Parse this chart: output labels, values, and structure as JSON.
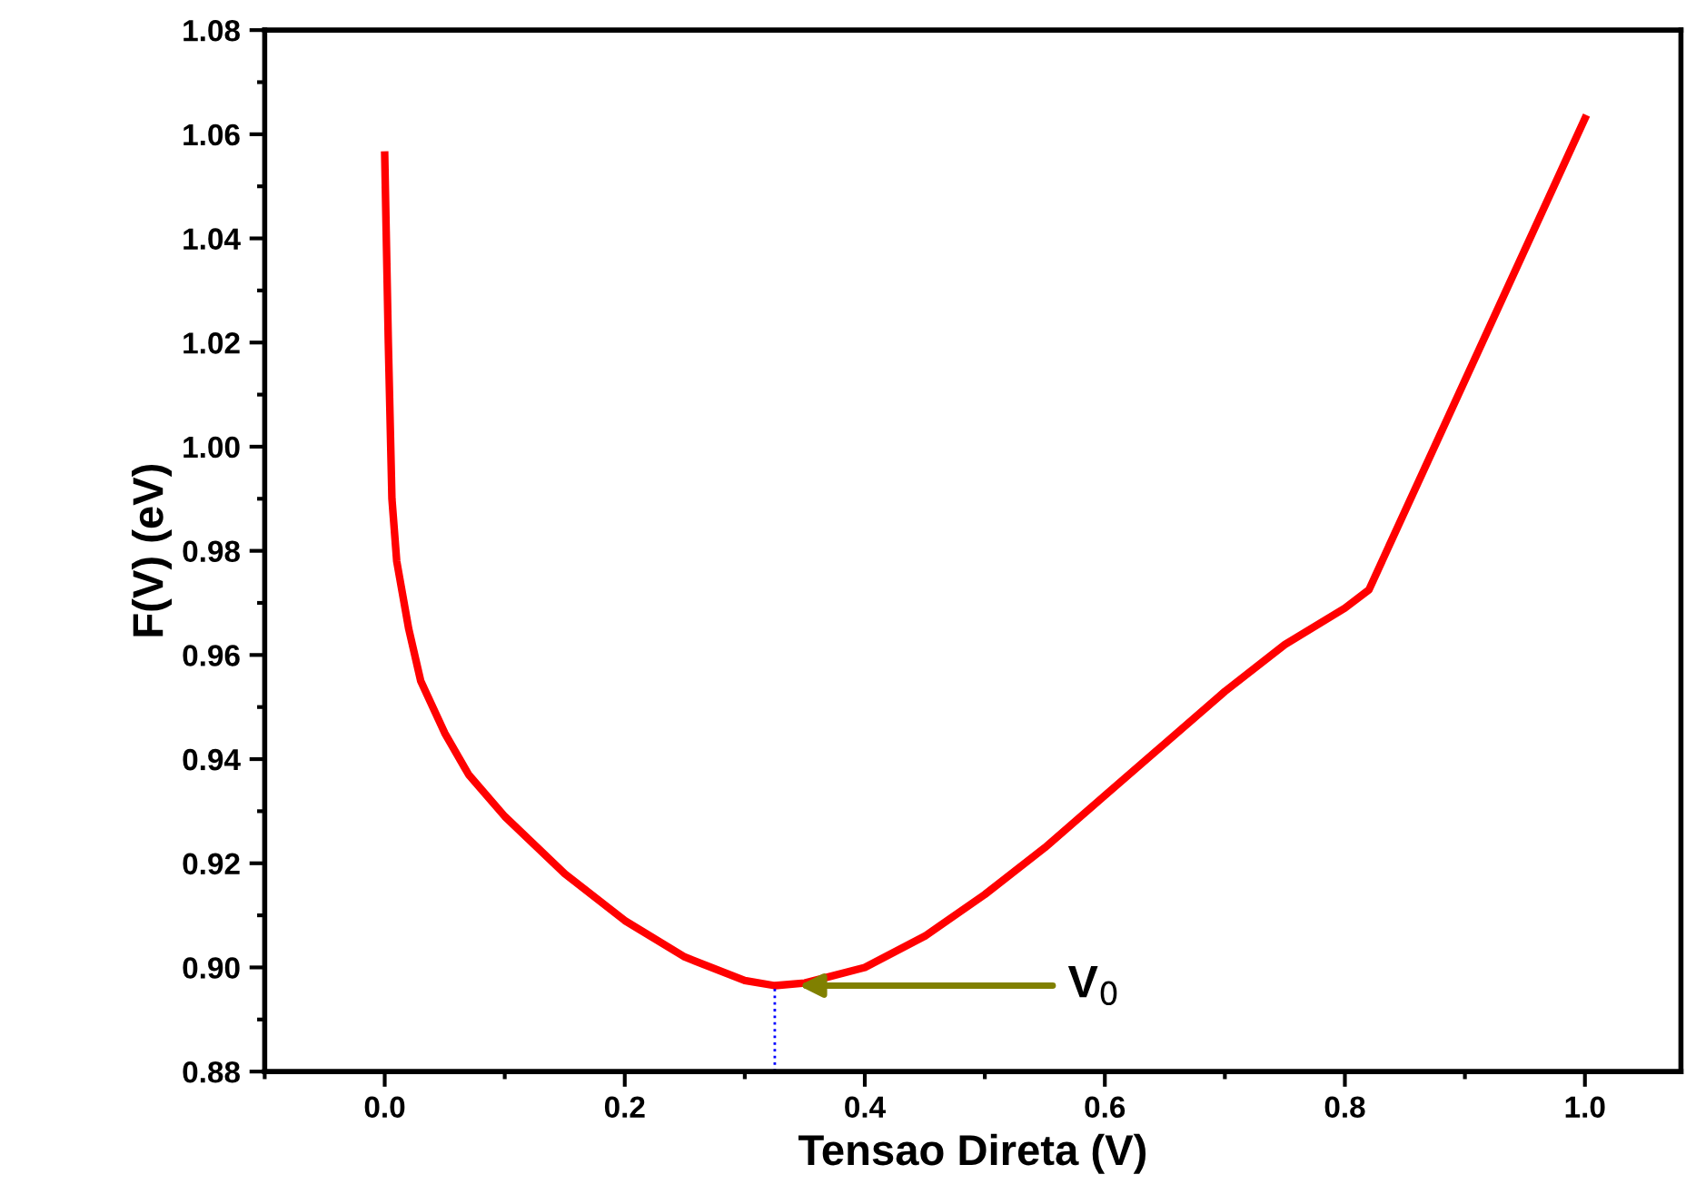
{
  "chart_data": {
    "type": "line",
    "xlabel": "Tensao Direta (V)",
    "ylabel": "F(V) (eV)",
    "xlim": [
      -0.1,
      1.08
    ],
    "ylim": [
      0.88,
      1.08
    ],
    "xticks": [
      {
        "value": 0.0,
        "label": "0.0"
      },
      {
        "value": 0.2,
        "label": "0.2"
      },
      {
        "value": 0.4,
        "label": "0.4"
      },
      {
        "value": 0.6,
        "label": "0.6"
      },
      {
        "value": 0.8,
        "label": "0.8"
      },
      {
        "value": 1.0,
        "label": "1.0"
      }
    ],
    "yticks": [
      {
        "value": 0.88,
        "label": "0.88"
      },
      {
        "value": 0.9,
        "label": "0.90"
      },
      {
        "value": 0.92,
        "label": "0.92"
      },
      {
        "value": 0.94,
        "label": "0.94"
      },
      {
        "value": 0.96,
        "label": "0.96"
      },
      {
        "value": 0.98,
        "label": "0.98"
      },
      {
        "value": 1.0,
        "label": "1.00"
      },
      {
        "value": 1.02,
        "label": "1.02"
      },
      {
        "value": 1.04,
        "label": "1.04"
      },
      {
        "value": 1.06,
        "label": "1.06"
      },
      {
        "value": 1.08,
        "label": "1.08"
      }
    ],
    "grid": false,
    "legend": false,
    "marker": "none",
    "line_style": "solid",
    "x": [
      0.0,
      0.003,
      0.006,
      0.01,
      0.02,
      0.03,
      0.05,
      0.07,
      0.1,
      0.15,
      0.2,
      0.25,
      0.3,
      0.325,
      0.35,
      0.4,
      0.45,
      0.5,
      0.55,
      0.6,
      0.65,
      0.7,
      0.75,
      0.8,
      0.82,
      1.0
    ],
    "series": [
      {
        "color": "#ff0000",
        "values": [
          1.056,
          1.02,
          0.99,
          0.978,
          0.965,
          0.955,
          0.945,
          0.937,
          0.929,
          0.918,
          0.909,
          0.902,
          0.8975,
          0.8965,
          0.897,
          0.9,
          0.906,
          0.914,
          0.923,
          0.933,
          0.943,
          0.953,
          0.962,
          0.969,
          0.9725,
          1.063
        ]
      }
    ],
    "ref_lines": [
      {
        "axis": "x",
        "value": 0.325,
        "color": "#0000ff",
        "line_style": "dotted"
      }
    ],
    "annotations": [
      {
        "text": "V$_{0}$",
        "x": 0.345,
        "y": 0.8965
      }
    ]
  }
}
